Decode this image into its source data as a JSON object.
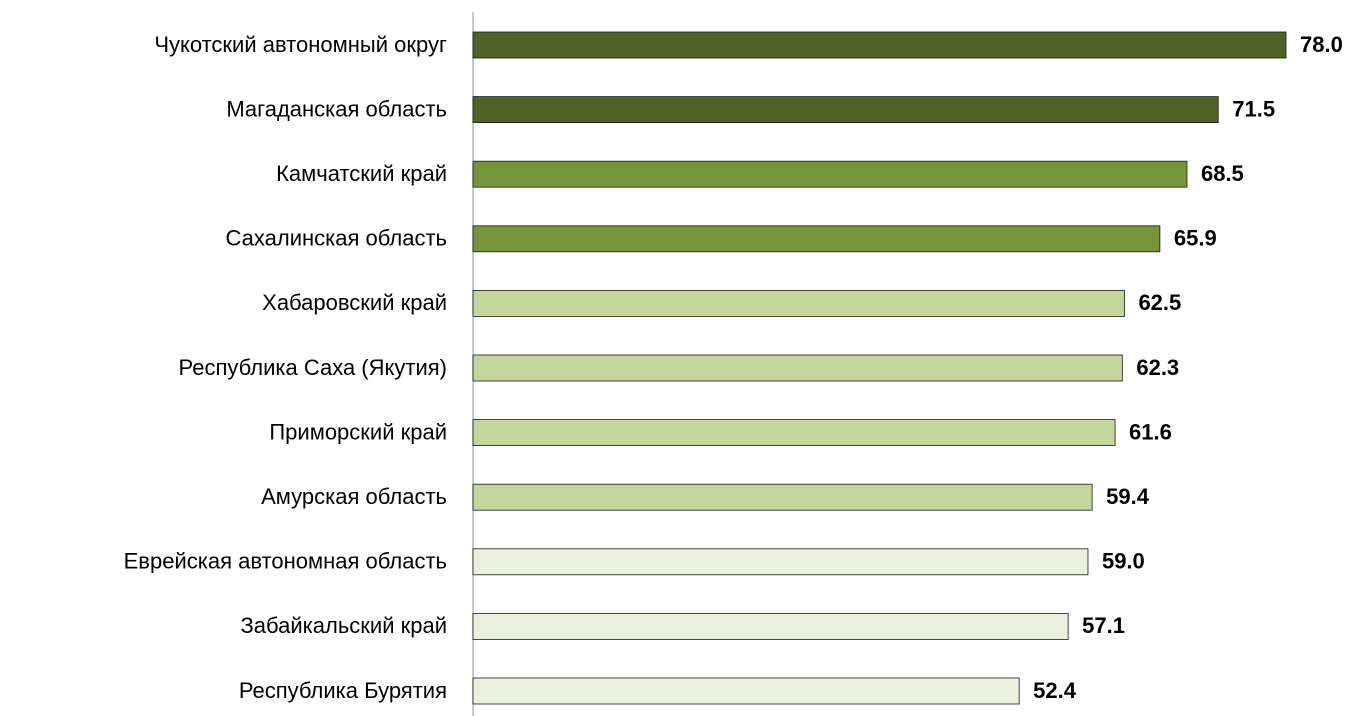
{
  "chart_data": {
    "type": "bar",
    "orientation": "horizontal",
    "categories": [
      "Чукотский автономный округ",
      "Магаданская область",
      "Камчатский край",
      "Сахалинская область",
      "Хабаровский край",
      "Республика Саха (Якутия)",
      "Приморский край",
      "Амурская область",
      "Еврейская автономная область",
      "Забайкальский край",
      "Республика Бурятия"
    ],
    "values": [
      78,
      71.5,
      68.5,
      65.9,
      62.5,
      62.3,
      61.6,
      59.4,
      59,
      57.1,
      52.4
    ],
    "value_labels": [
      "78.0",
      "71.5",
      "68.5",
      "65.9",
      "62.5",
      "62.3",
      "61.6",
      "59.4",
      "59.0",
      "57.1",
      "52.4"
    ],
    "colors": [
      "#4f6228",
      "#4f6228",
      "#77933c",
      "#77933c",
      "#c3d69b",
      "#c3d69b",
      "#c3d69b",
      "#c3d69b",
      "#ebf1de",
      "#ebf1de",
      "#ebf1de"
    ]
  }
}
